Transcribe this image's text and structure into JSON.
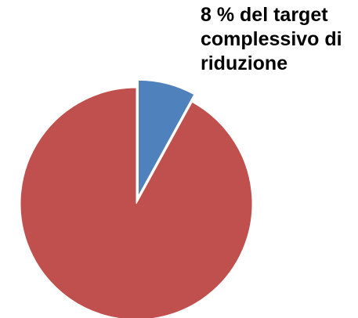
{
  "chart_data": {
    "type": "pie",
    "title": "",
    "slices": [
      {
        "value": 8,
        "color": "#4F81BD",
        "exploded": true
      },
      {
        "value": 92,
        "color": "#C0504D",
        "exploded": false
      }
    ],
    "annotations": [
      {
        "slice": 0,
        "lines": [
          "8 % del target",
          "complessivo di",
          "riduzione"
        ]
      }
    ],
    "legend": "none"
  }
}
